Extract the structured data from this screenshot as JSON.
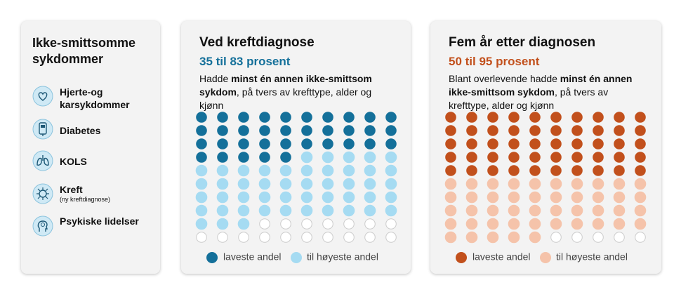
{
  "sidebar": {
    "title": "Ikke-smittsomme sykdommer",
    "items": [
      {
        "label": "Hjerte-og karsykdommer"
      },
      {
        "label": "Diabetes"
      },
      {
        "label": "KOLS"
      },
      {
        "label": "Kreft",
        "note": "(ny kreftdiagnose)"
      },
      {
        "label": "Psykiske lidelser"
      }
    ]
  },
  "panels": [
    {
      "title": "Ved kreftdiagnose",
      "range_label": "35 til 83 prosent",
      "low": 35,
      "high": 83,
      "dark_color": "#14709a",
      "light_color": "#a5dbf2",
      "description": [
        "Hadde ",
        "minst én annen ikke-smittsom sykdom",
        ", på tvers av krefttype, alder og kjønn"
      ],
      "legend": [
        "laveste andel",
        "til høyeste andel"
      ]
    },
    {
      "title": "Fem år etter diagnosen",
      "range_label": "50 til 95 prosent",
      "low": 50,
      "high": 95,
      "dark_color": "#c2501c",
      "light_color": "#f5c3aa",
      "description": [
        "Blant overlevende hadde ",
        "minst én annen ikke-smittsom sykdom",
        ", på tvers av krefttype, alder og kjønn"
      ],
      "legend": [
        "laveste andel",
        "til høyeste andel"
      ]
    }
  ]
}
